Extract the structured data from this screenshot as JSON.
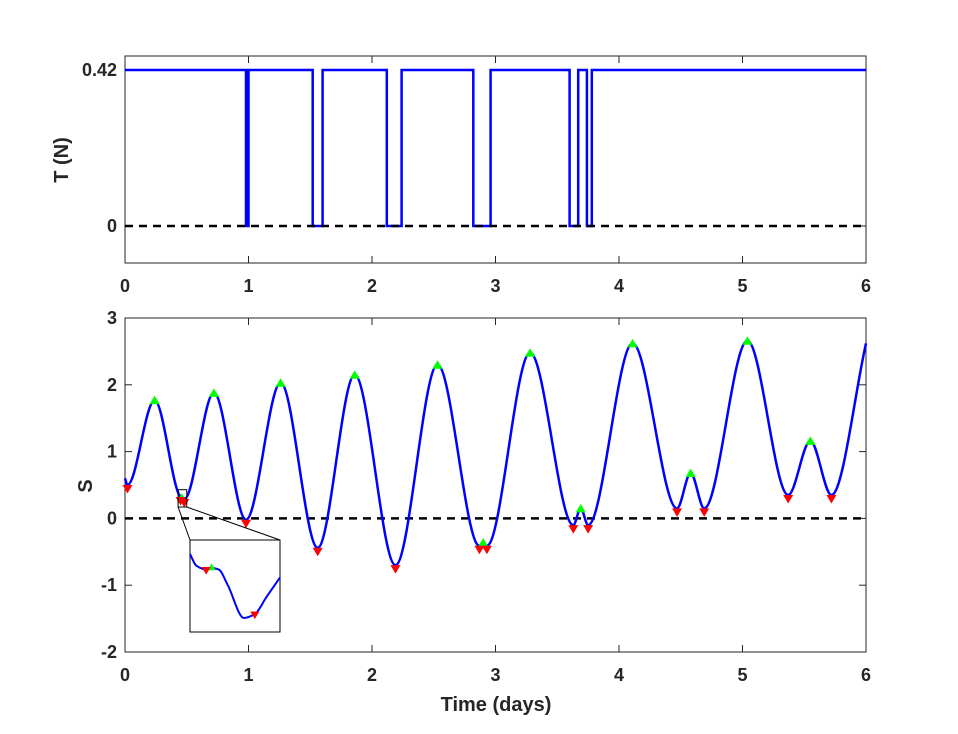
{
  "chart_data": [
    {
      "type": "line",
      "panel": "top",
      "ylabel": "T (N)",
      "xlabel": "",
      "xlim": [
        0,
        6
      ],
      "ylim": [
        -0.1,
        0.42
      ],
      "xticks": [
        "0",
        "1",
        "2",
        "3",
        "4",
        "5",
        "6"
      ],
      "yticks": [
        {
          "value": 0,
          "label": "0"
        },
        {
          "value": 0.42,
          "label": "0.42"
        }
      ],
      "series": [
        {
          "color": "#0000FF",
          "style": "solid",
          "x": [
            0,
            0.98,
            0.98,
            1.0,
            1.0,
            1.52,
            1.52,
            1.6,
            1.6,
            2.12,
            2.12,
            2.24,
            2.24,
            2.82,
            2.82,
            2.96,
            2.96,
            3.6,
            3.6,
            3.67,
            3.67,
            3.74,
            3.74,
            3.78,
            3.78,
            6.0
          ],
          "y": [
            0.42,
            0.42,
            0,
            0,
            0.42,
            0.42,
            0,
            0,
            0.42,
            0.42,
            0,
            0,
            0.42,
            0.42,
            0,
            0,
            0.42,
            0.42,
            0,
            0,
            0.42,
            0.42,
            0,
            0,
            0.42,
            0.42
          ]
        },
        {
          "color": "#000000",
          "style": "dashed",
          "x": [
            0,
            6
          ],
          "y": [
            0,
            0
          ]
        }
      ]
    },
    {
      "type": "line",
      "panel": "bottom",
      "xlabel": "Time (days)",
      "ylabel": "S",
      "xlim": [
        0,
        6
      ],
      "ylim": [
        -2,
        3
      ],
      "xticks": [
        "0",
        "1",
        "2",
        "3",
        "4",
        "5",
        "6"
      ],
      "yticks": [
        {
          "value": -2,
          "label": "-2"
        },
        {
          "value": -1,
          "label": "-1"
        },
        {
          "value": 0,
          "label": "0"
        },
        {
          "value": 1,
          "label": "1"
        },
        {
          "value": 2,
          "label": "2"
        },
        {
          "value": 3,
          "label": "3"
        }
      ],
      "curve": {
        "color": "#0000FF",
        "knots": [
          [
            0.0,
            0.6
          ],
          [
            0.02,
            0.5
          ],
          [
            0.24,
            1.77
          ],
          [
            0.45,
            0.32
          ],
          [
            0.47,
            0.3
          ],
          [
            0.48,
            0.29
          ],
          [
            0.72,
            1.88
          ],
          [
            0.98,
            -0.02
          ],
          [
            1.26,
            2.03
          ],
          [
            1.56,
            -0.44
          ],
          [
            1.86,
            2.15
          ],
          [
            2.19,
            -0.7
          ],
          [
            2.53,
            2.3
          ],
          [
            2.87,
            -0.41
          ],
          [
            2.9,
            -0.36
          ],
          [
            2.93,
            -0.41
          ],
          [
            3.28,
            2.48
          ],
          [
            3.63,
            -0.1
          ],
          [
            3.69,
            0.15
          ],
          [
            3.75,
            -0.1
          ],
          [
            4.11,
            2.62
          ],
          [
            4.47,
            0.15
          ],
          [
            4.58,
            0.68
          ],
          [
            4.69,
            0.15
          ],
          [
            5.04,
            2.66
          ],
          [
            5.37,
            0.35
          ],
          [
            5.55,
            1.16
          ],
          [
            5.72,
            0.35
          ],
          [
            6.0,
            2.62
          ]
        ]
      },
      "maxima": [
        [
          0.24,
          1.77
        ],
        [
          0.46,
          0.31
        ],
        [
          0.72,
          1.88
        ],
        [
          1.26,
          2.03
        ],
        [
          1.86,
          2.15
        ],
        [
          2.53,
          2.3
        ],
        [
          2.9,
          -0.36
        ],
        [
          3.28,
          2.48
        ],
        [
          3.69,
          0.15
        ],
        [
          4.11,
          2.62
        ],
        [
          4.58,
          0.68
        ],
        [
          5.04,
          2.66
        ],
        [
          5.55,
          1.16
        ]
      ],
      "minima": [
        [
          0.02,
          0.5
        ],
        [
          0.45,
          0.32
        ],
        [
          0.48,
          0.29
        ],
        [
          0.98,
          -0.02
        ],
        [
          1.56,
          -0.44
        ],
        [
          2.19,
          -0.7
        ],
        [
          2.87,
          -0.41
        ],
        [
          2.93,
          -0.41
        ],
        [
          3.63,
          -0.1
        ],
        [
          3.75,
          -0.1
        ],
        [
          4.47,
          0.15
        ],
        [
          4.69,
          0.15
        ],
        [
          5.37,
          0.35
        ],
        [
          5.72,
          0.35
        ]
      ],
      "marker_colors": {
        "maxima": "#00FF00",
        "minima": "#FF0000"
      },
      "reference_line": {
        "y": 0,
        "color": "#000000",
        "style": "dashed"
      },
      "inset": {
        "zoom_x": [
          0.43,
          0.5
        ],
        "zoom_y": [
          0.26,
          0.34
        ],
        "curve": [
          [
            0.0,
            0.0
          ],
          [
            0.07,
            0.15
          ],
          [
            0.18,
            0.2
          ],
          [
            0.24,
            0.18
          ],
          [
            0.32,
            0.2
          ],
          [
            0.42,
            0.4
          ],
          [
            0.6,
            0.82
          ],
          [
            0.72,
            0.77
          ],
          [
            0.85,
            0.55
          ],
          [
            1.0,
            0.3
          ]
        ],
        "maxima": [
          [
            0.24,
            0.18
          ]
        ],
        "minima": [
          [
            0.18,
            0.2
          ],
          [
            0.72,
            0.77
          ]
        ]
      }
    }
  ]
}
